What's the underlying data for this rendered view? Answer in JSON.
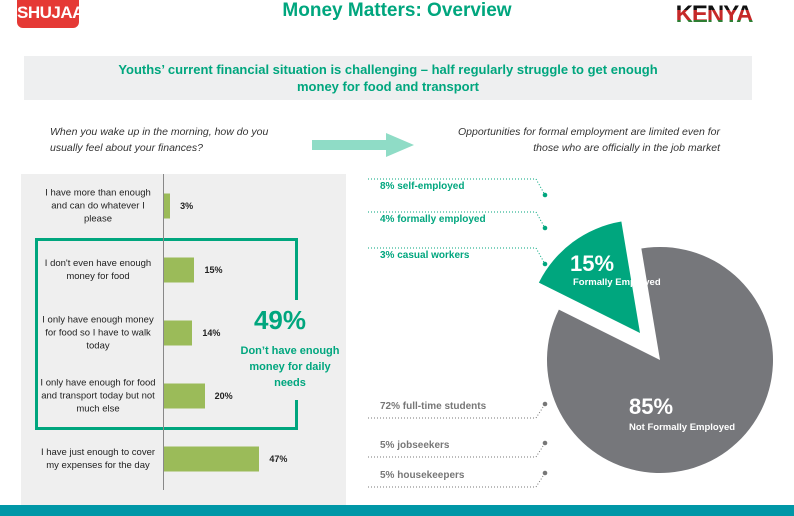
{
  "header": {
    "logo": "SHUJAAZ",
    "title": "Money Matters: Overview",
    "country_logo": "KENYA"
  },
  "banner": "Youths’ current financial situation is challenging – half regularly struggle to get enough money for food and transport",
  "left_question": "When you wake up in the morning, how do you usually feel about your finances?",
  "right_statement": "Opportunities for formal employment are limited even for those who are officially in the job market",
  "highlight": {
    "value": "49%",
    "text": "Don’t have enough money for daily needs"
  },
  "colors": {
    "green": "#00a67e",
    "bar": "#9bbb59",
    "gray": "#76777b",
    "teal": "#0097a7"
  },
  "chart_data": [
    {
      "type": "bar",
      "orientation": "horizontal",
      "categories": [
        "I have more than enough and can do whatever I please",
        "I don't even have enough money for food",
        "I only have enough money for food  so  I have to walk today",
        "I only have enough for food and transport today but not much else",
        "I have just enough to cover my expenses for the day"
      ],
      "values": [
        3,
        15,
        14,
        20,
        47
      ],
      "data_labels": [
        "3%",
        "15%",
        "14%",
        "20%",
        "47%"
      ]
    },
    {
      "type": "pie",
      "slices": [
        {
          "name": "Formally Employed",
          "value": 15,
          "label": "15%"
        },
        {
          "name": "Not Formally Employed",
          "value": 85,
          "label": "85%"
        }
      ],
      "annotations_formal": [
        "8% self-employed",
        "4% formally employed",
        "3% casual workers"
      ],
      "annotations_not_formal": [
        "72% full-time students",
        "5% jobseekers",
        "5% housekeepers"
      ]
    }
  ]
}
